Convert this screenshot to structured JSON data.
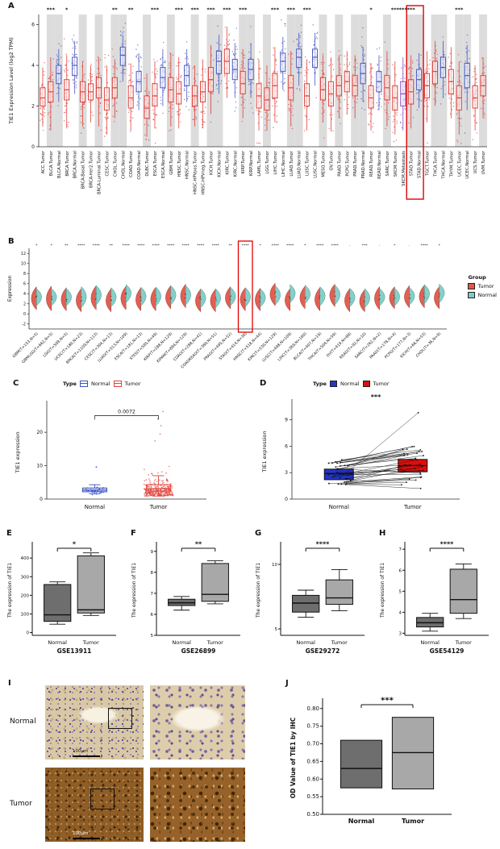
{
  "panel_letters": {
    "a": "A",
    "b": "B",
    "c": "C",
    "d": "D",
    "e": "E",
    "f": "F",
    "g": "G",
    "h": "H",
    "i": "I",
    "j": "J"
  },
  "legend_b": {
    "title": "Group",
    "tumor": "Tumor",
    "normal": "Normal"
  },
  "legend_c": {
    "title": "Type",
    "normal": "Normal",
    "tumor": "Tumor"
  },
  "legend_d": {
    "title": "Type",
    "normal": "Normal",
    "tumor": "Tumor"
  },
  "ihc": {
    "row_labels": [
      "Normal",
      "Tumor"
    ],
    "scale_bar": "100μm"
  },
  "chart_data": [
    {
      "id": "A",
      "type": "box-jitter",
      "ylabel": "TIE1 Expression Level (log2 TPM)",
      "ylim": [
        0,
        6.5
      ],
      "yticks": [
        0,
        2,
        4,
        6
      ],
      "colors": {
        "t": "#e0423c",
        "n": "#4958c5",
        "m": "#8a4fc8"
      },
      "highlight": [
        "STAD.Tumor",
        "STAD.Normal"
      ],
      "categories": [
        [
          "ACC.Tumor",
          "t",
          1.0,
          2.0,
          2.4,
          2.9,
          3.9,
          ""
        ],
        [
          "BLCA.Tumor",
          "t",
          0.8,
          2.2,
          2.7,
          3.2,
          4.4,
          "***"
        ],
        [
          "BLCA.Normal",
          "n",
          2.2,
          3.1,
          3.6,
          4.0,
          4.8,
          ""
        ],
        [
          "BRCA.Tumor",
          "t",
          0.9,
          2.3,
          2.8,
          3.3,
          4.5,
          "*"
        ],
        [
          "BRCA.Normal",
          "n",
          2.6,
          3.5,
          4.0,
          4.4,
          5.2,
          ""
        ],
        [
          "BRCA-Basal.Tumor",
          "t",
          1.0,
          2.2,
          2.7,
          3.2,
          4.2,
          ""
        ],
        [
          "BRCA-Her2.Tumor",
          "t",
          1.2,
          2.3,
          2.7,
          3.1,
          4.0,
          ""
        ],
        [
          "BRCA-Luminal.Tumor",
          "t",
          1.0,
          2.4,
          2.9,
          3.4,
          4.4,
          ""
        ],
        [
          "CESC.Tumor",
          "t",
          0.6,
          1.8,
          2.3,
          2.9,
          4.0,
          ""
        ],
        [
          "CHOL.Tumor",
          "t",
          1.4,
          2.4,
          2.9,
          3.4,
          4.3,
          "**"
        ],
        [
          "CHOL.Normal",
          "n",
          3.2,
          4.0,
          4.5,
          4.9,
          5.5,
          ""
        ],
        [
          "COAD.Tumor",
          "t",
          0.8,
          1.9,
          2.4,
          3.0,
          4.1,
          "**"
        ],
        [
          "COAD.Normal",
          "n",
          1.8,
          2.7,
          3.2,
          3.7,
          4.6,
          ""
        ],
        [
          "DLBC.Tumor",
          "t",
          0.5,
          1.4,
          1.9,
          2.5,
          3.6,
          ""
        ],
        [
          "ESCA.Tumor",
          "t",
          0.9,
          2.0,
          2.5,
          3.1,
          4.2,
          "***"
        ],
        [
          "ESCA.Normal",
          "n",
          2.0,
          2.9,
          3.4,
          3.9,
          4.8,
          ""
        ],
        [
          "GBM.Tumor",
          "t",
          1.0,
          2.2,
          2.8,
          3.4,
          4.6,
          ""
        ],
        [
          "HNSC.Tumor",
          "t",
          0.9,
          2.1,
          2.6,
          3.2,
          4.4,
          "***"
        ],
        [
          "HNSC.Normal",
          "n",
          2.2,
          3.0,
          3.5,
          4.0,
          4.8,
          ""
        ],
        [
          "HNSC-HPVpos.Tumor",
          "t",
          1.0,
          2.0,
          2.5,
          3.0,
          4.0,
          "***"
        ],
        [
          "HNSC-HPVneg.Tumor",
          "t",
          0.9,
          2.2,
          2.7,
          3.2,
          4.3,
          ""
        ],
        [
          "KICH.Tumor",
          "t",
          1.6,
          2.7,
          3.3,
          3.9,
          5.0,
          "***"
        ],
        [
          "KICH.Normal",
          "n",
          2.6,
          3.6,
          4.2,
          4.7,
          5.5,
          ""
        ],
        [
          "KIRC.Tumor",
          "t",
          2.4,
          3.6,
          4.2,
          4.8,
          5.9,
          "***"
        ],
        [
          "KIRC.Normal",
          "n",
          2.4,
          3.3,
          3.8,
          4.3,
          5.1,
          ""
        ],
        [
          "KIRP.Tumor",
          "t",
          1.4,
          2.6,
          3.1,
          3.7,
          4.8,
          "***"
        ],
        [
          "KIRP.Normal",
          "n",
          2.4,
          3.3,
          3.8,
          4.3,
          5.1,
          ""
        ],
        [
          "LAML.Tumor",
          "t",
          0.8,
          1.9,
          2.5,
          3.1,
          4.3,
          ""
        ],
        [
          "LGG.Tumor",
          "t",
          0.8,
          1.8,
          2.3,
          2.9,
          4.0,
          ""
        ],
        [
          "LIHC.Tumor",
          "t",
          1.2,
          2.4,
          3.0,
          3.6,
          4.9,
          "***"
        ],
        [
          "LIHC.Normal",
          "n",
          2.8,
          3.7,
          4.2,
          4.6,
          5.4,
          ""
        ],
        [
          "LUAD.Tumor",
          "t",
          1.0,
          2.3,
          2.9,
          3.5,
          4.7,
          "***"
        ],
        [
          "LUAD.Normal",
          "n",
          3.0,
          3.9,
          4.4,
          4.8,
          5.6,
          ""
        ],
        [
          "LUSC.Tumor",
          "t",
          0.8,
          2.0,
          2.5,
          3.1,
          4.3,
          "***"
        ],
        [
          "LUSC.Normal",
          "n",
          3.0,
          3.9,
          4.4,
          4.8,
          5.6,
          ""
        ],
        [
          "MESO.Tumor",
          "t",
          1.2,
          2.3,
          2.8,
          3.4,
          4.5,
          ""
        ],
        [
          "OV.Tumor",
          "t",
          0.8,
          2.0,
          2.6,
          3.2,
          4.4,
          ""
        ],
        [
          "PAAD.Tumor",
          "t",
          1.4,
          2.5,
          3.0,
          3.5,
          4.5,
          ""
        ],
        [
          "PCPG.Tumor",
          "t",
          1.6,
          2.7,
          3.2,
          3.7,
          4.7,
          ""
        ],
        [
          "PRAD.Tumor",
          "t",
          1.4,
          2.5,
          3.0,
          3.5,
          4.5,
          ""
        ],
        [
          "PRAD.Normal",
          "n",
          2.2,
          3.1,
          3.6,
          4.1,
          4.9,
          ""
        ],
        [
          "READ.Tumor",
          "t",
          0.8,
          1.9,
          2.4,
          3.0,
          4.1,
          "*"
        ],
        [
          "READ.Normal",
          "n",
          1.8,
          2.7,
          3.2,
          3.7,
          4.5,
          ""
        ],
        [
          "SARC.Tumor",
          "t",
          1.0,
          2.3,
          2.9,
          3.5,
          4.7,
          ""
        ],
        [
          "SKCM.Tumor",
          "t",
          0.6,
          1.8,
          2.4,
          3.0,
          4.2,
          "***"
        ],
        [
          "SKCM.Metastasis",
          "m",
          0.8,
          2.0,
          2.6,
          3.2,
          4.4,
          "***"
        ],
        [
          "STAD.Tumor",
          "t",
          0.9,
          2.1,
          2.7,
          3.3,
          4.5,
          "***"
        ],
        [
          "STAD.Normal",
          "n",
          1.9,
          2.8,
          3.3,
          3.8,
          4.6,
          ""
        ],
        [
          "TGCT.Tumor",
          "t",
          1.2,
          2.4,
          3.0,
          3.6,
          4.7,
          ""
        ],
        [
          "THCA.Tumor",
          "t",
          2.0,
          3.1,
          3.7,
          4.2,
          5.2,
          ""
        ],
        [
          "THCA.Normal",
          "n",
          2.4,
          3.4,
          3.9,
          4.4,
          5.2,
          ""
        ],
        [
          "THYM.Tumor",
          "t",
          1.4,
          2.6,
          3.2,
          3.8,
          4.9,
          ""
        ],
        [
          "UCEC.Tumor",
          "t",
          0.6,
          1.8,
          2.4,
          3.0,
          4.2,
          "***"
        ],
        [
          "UCEC.Normal",
          "n",
          1.8,
          2.9,
          3.5,
          4.1,
          5.0,
          ""
        ],
        [
          "UCS.Tumor",
          "t",
          0.8,
          1.9,
          2.4,
          3.0,
          4.0,
          ""
        ],
        [
          "UVM.Tumor",
          "t",
          1.4,
          2.5,
          3.0,
          3.5,
          4.4,
          ""
        ]
      ]
    },
    {
      "id": "B",
      "type": "violin-split",
      "ylabel": "Expression",
      "ylim": [
        -3,
        13
      ],
      "yticks": [
        -2,
        0,
        2,
        4,
        6,
        8,
        10,
        12
      ],
      "colors": {
        "tumor": "#e0564a",
        "normal": "#7fccc6"
      },
      "highlight": "STAD(T=414,N=36)",
      "categories": [
        [
          "GBM(T=153,N=5)",
          "*",
          0.8,
          3.0,
          5.4,
          1.6,
          3.4,
          5.0
        ],
        [
          "GBMLGG(T=662,N=5)",
          "*",
          0.6,
          2.9,
          5.5,
          1.6,
          3.4,
          5.0
        ],
        [
          "LGG(T=509,N=5)",
          "**",
          0.6,
          2.8,
          5.2,
          1.6,
          3.4,
          5.0
        ],
        [
          "UCEC(T=180,N=23)",
          "****",
          0.4,
          2.6,
          5.0,
          1.2,
          3.5,
          5.4
        ],
        [
          "BRCA(T=1109,N=113)",
          "****",
          0.8,
          3.0,
          5.6,
          1.8,
          3.8,
          5.6
        ],
        [
          "CESC(T=304,N=13)",
          "**",
          0.4,
          2.5,
          5.0,
          1.4,
          3.3,
          5.2
        ],
        [
          "LUAD(T=513,N=109)",
          "****",
          0.8,
          3.0,
          5.5,
          2.2,
          4.2,
          5.8
        ],
        [
          "ESCA(T=181,N=13)",
          "****",
          0.6,
          2.7,
          5.2,
          1.6,
          3.5,
          5.3
        ],
        [
          "STES(T=595,N=49)",
          "****",
          0.6,
          2.8,
          5.3,
          1.6,
          3.5,
          5.3
        ],
        [
          "KIRP(T=288,N=129)",
          "****",
          1.0,
          3.2,
          5.6,
          1.8,
          3.8,
          5.6
        ],
        [
          "KIPAN(T=884,N=129)",
          "****",
          1.2,
          3.5,
          5.9,
          1.8,
          3.8,
          5.6
        ],
        [
          "COAD(T=288,N=41)",
          "****",
          0.4,
          2.5,
          4.9,
          1.2,
          3.2,
          5.0
        ],
        [
          "COADREAD(T=380,N=51)",
          "****",
          0.4,
          2.5,
          4.9,
          1.2,
          3.2,
          5.0
        ],
        [
          "PRAD(T=495,N=52)",
          "**",
          1.0,
          3.1,
          5.4,
          1.6,
          3.5,
          5.3
        ],
        [
          "STAD(T=414,N=36)",
          "****",
          0.6,
          2.8,
          5.2,
          1.4,
          3.4,
          5.2
        ],
        [
          "HNSC(T=518,N=44)",
          "*",
          0.6,
          2.7,
          5.1,
          1.4,
          3.2,
          5.0
        ],
        [
          "KIRC(T=530,N=129)",
          "****",
          1.6,
          3.9,
          6.1,
          1.8,
          3.8,
          5.6
        ],
        [
          "LUSC(T=498,N=109)",
          "****",
          0.6,
          2.6,
          5.0,
          2.2,
          4.2,
          5.8
        ],
        [
          "LIHC(T=369,N=160)",
          "*",
          1.0,
          3.1,
          5.5,
          2.0,
          4.0,
          5.7
        ],
        [
          "BLCA(T=407,N=19)",
          "****",
          0.6,
          2.8,
          5.2,
          1.6,
          3.6,
          5.4
        ],
        [
          "THCA(T=504,N=59)",
          "****",
          1.4,
          3.7,
          5.9,
          1.8,
          3.9,
          5.7
        ],
        [
          "OV(T=419,N=88)",
          "-",
          0.4,
          2.6,
          5.0,
          1.4,
          3.3,
          5.1
        ],
        [
          "READ(T=92,N=10)",
          "***",
          0.4,
          2.4,
          4.8,
          1.2,
          3.2,
          5.0
        ],
        [
          "SARC(T=262,N=2)",
          "-",
          0.8,
          3.0,
          5.4,
          1.6,
          3.4,
          5.0
        ],
        [
          "PAAD(T=178,N=4)",
          "*",
          1.0,
          3.1,
          5.4,
          1.6,
          3.4,
          5.1
        ],
        [
          "PCPG(T=177,N=3)",
          "-",
          1.2,
          3.3,
          5.6,
          1.8,
          3.6,
          5.2
        ],
        [
          "KICH(T=66,N=53)",
          "****",
          1.2,
          3.4,
          5.7,
          2.0,
          4.1,
          5.8
        ],
        [
          "CHOL(T=36,N=9)",
          "*",
          1.0,
          3.1,
          5.4,
          2.2,
          4.3,
          5.9
        ]
      ]
    },
    {
      "id": "C",
      "type": "box-scatter",
      "ylabel": "TIE1 expression",
      "ylim": [
        0,
        28
      ],
      "yticks": [
        0,
        10,
        20
      ],
      "categories": [
        "Normal",
        "Tumor"
      ],
      "p_value": "0.0072",
      "normal": {
        "color": "#3a53c4",
        "box": {
          "lo": 1.6,
          "q1": 2.2,
          "med": 2.7,
          "q3": 3.3,
          "hi": 4.3
        },
        "n_points": 32,
        "outlier": 9.6
      },
      "tumor": {
        "color": "#e0423c",
        "box": {
          "lo": 0.9,
          "q1": 2.4,
          "med": 3.1,
          "q3": 4.3,
          "hi": 7.0
        },
        "n_points": 300,
        "max": 27
      }
    },
    {
      "id": "D",
      "type": "paired",
      "ylabel": "TIE1 expression",
      "ylim": [
        0,
        10.8
      ],
      "yticks": [
        0,
        3,
        6,
        9
      ],
      "sig": "***",
      "categories": [
        "Normal",
        "Tumor"
      ],
      "colors": {
        "normal": "#2433c8",
        "tumor": "#e00d0d"
      },
      "normal_box": {
        "q1": 2.2,
        "med": 2.9,
        "q3": 3.4
      },
      "tumor_box": {
        "q1": 3.1,
        "med": 3.8,
        "q3": 4.5
      },
      "pairs": 33,
      "special_pair": [
        2.4,
        9.8
      ]
    },
    {
      "id": "E",
      "type": "box2",
      "dataset": "GSE13911",
      "categories": [
        "Normal",
        "Tumor"
      ],
      "ylabel": "The expression of TIE1",
      "ylim": [
        -15,
        470
      ],
      "yticks": [
        0,
        100,
        200,
        300,
        400
      ],
      "sig": "*",
      "colors": {
        "normal": "#6e6e6e",
        "tumor": "#a8a8a8"
      },
      "normal": {
        "lo": 45,
        "q1": 60,
        "med": 95,
        "q3": 258,
        "hi": 272
      },
      "tumor": {
        "lo": 92,
        "q1": 105,
        "med": 122,
        "q3": 412,
        "hi": 428
      }
    },
    {
      "id": "F",
      "type": "box2",
      "dataset": "GSE26899",
      "categories": [
        "Normal",
        "Tumor"
      ],
      "ylabel": "The expression of TIE1",
      "ylim": [
        5,
        9.3
      ],
      "yticks": [
        5,
        6,
        7,
        8,
        9
      ],
      "sig": "**",
      "colors": {
        "normal": "#6e6e6e",
        "tumor": "#a8a8a8"
      },
      "normal": {
        "lo": 6.2,
        "q1": 6.42,
        "med": 6.55,
        "q3": 6.72,
        "hi": 6.85
      },
      "tumor": {
        "lo": 6.5,
        "q1": 6.62,
        "med": 6.95,
        "q3": 8.42,
        "hi": 8.55
      }
    },
    {
      "id": "G",
      "type": "box2",
      "dataset": "GSE29272",
      "categories": [
        "Normal",
        "Tumor"
      ],
      "ylabel": "The expression of TIE1",
      "ylim": [
        4.5,
        11.5
      ],
      "yticks": [
        5,
        10
      ],
      "sig": "****",
      "colors": {
        "normal": "#6e6e6e",
        "tumor": "#a8a8a8"
      },
      "normal": {
        "lo": 5.9,
        "q1": 6.3,
        "med": 7.0,
        "q3": 7.6,
        "hi": 8.0
      },
      "tumor": {
        "lo": 6.4,
        "q1": 6.9,
        "med": 7.4,
        "q3": 8.8,
        "hi": 9.6
      }
    },
    {
      "id": "H",
      "type": "box2",
      "dataset": "GSE54129",
      "categories": [
        "Normal",
        "Tumor"
      ],
      "ylabel": "The expression of TIE1",
      "ylim": [
        2.9,
        7.2
      ],
      "yticks": [
        3,
        4,
        5,
        6,
        7
      ],
      "sig": "****",
      "colors": {
        "normal": "#6e6e6e",
        "tumor": "#a8a8a8"
      },
      "normal": {
        "lo": 3.1,
        "q1": 3.3,
        "med": 3.5,
        "q3": 3.75,
        "hi": 3.95
      },
      "tumor": {
        "lo": 3.7,
        "q1": 3.95,
        "med": 4.6,
        "q3": 6.05,
        "hi": 6.3
      }
    },
    {
      "id": "J",
      "type": "box2",
      "dataset": "",
      "categories": [
        "Normal",
        "Tumor"
      ],
      "ylabel": "OD Value of TIE1 by IHC",
      "ylim": [
        0.5,
        0.82
      ],
      "yticks": [
        "0.50",
        "0.55",
        "0.60",
        "0.65",
        "0.70",
        "0.75",
        "0.80"
      ],
      "sig": "***",
      "colors": {
        "normal": "#6e6e6e",
        "tumor": "#a8a8a8"
      },
      "normal": {
        "lo": 0.575,
        "q1": 0.575,
        "med": 0.63,
        "q3": 0.71,
        "hi": 0.71
      },
      "tumor": {
        "lo": 0.572,
        "q1": 0.572,
        "med": 0.675,
        "q3": 0.775,
        "hi": 0.775
      }
    }
  ]
}
